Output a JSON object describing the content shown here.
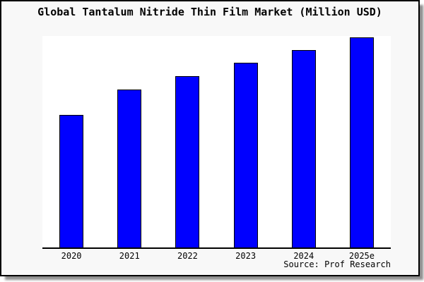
{
  "chart_data": {
    "type": "bar",
    "title": "Global Tantalum Nitride Thin Film Market (Million USD)",
    "categories": [
      "2020",
      "2021",
      "2022",
      "2023",
      "2024",
      "2025e"
    ],
    "values": [
      62.6,
      74.8,
      81.1,
      87.4,
      93.4,
      99.3
    ],
    "value_note": "No y-axis tick labels or data labels are shown in the chart; values are relative bar heights on a 0-100 scale (2025e tallest).",
    "ylim": [
      0,
      100
    ],
    "xlabel": "",
    "ylabel": "",
    "grid": false,
    "legend": "none",
    "source": "Source: Prof Research",
    "colors": {
      "bar_fill": "#0000ff",
      "bar_border": "#000000",
      "plot_bg": "#ffffff",
      "frame_bg": "#f8f8f8",
      "frame_border": "#000000",
      "axis": "#000000",
      "text": "#000000",
      "shadow": "#8f8f8f"
    }
  }
}
